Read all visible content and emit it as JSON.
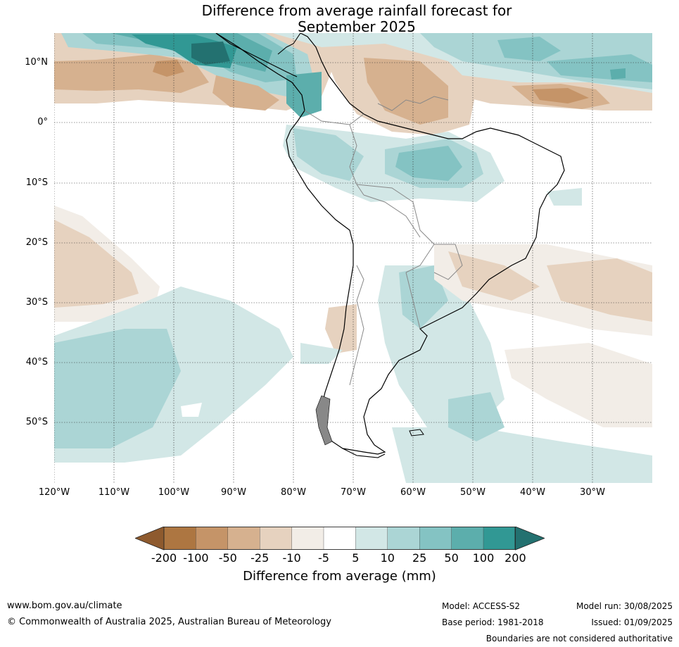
{
  "title": {
    "line1": "Difference from average rainfall forecast for",
    "line2": "September 2025"
  },
  "axes": {
    "lat_labels": [
      "10°N",
      "0°",
      "10°S",
      "20°S",
      "30°S",
      "40°S",
      "50°S"
    ],
    "lon_labels": [
      "120°W",
      "110°W",
      "100°W",
      "90°W",
      "80°W",
      "70°W",
      "60°W",
      "50°W",
      "40°W",
      "30°W"
    ]
  },
  "colorbar": {
    "ticks": [
      "-200",
      "-100",
      "-50",
      "-25",
      "-10",
      "-5",
      "5",
      "10",
      "25",
      "50",
      "100",
      "200"
    ],
    "label": "Difference from average (mm)",
    "colors": [
      "#8e5a2e",
      "#ad7641",
      "#c59468",
      "#d6b18f",
      "#e6d2bf",
      "#f2ede7",
      "#ffffff",
      "#d2e7e6",
      "#abd5d5",
      "#84c3c3",
      "#5caeac",
      "#319894",
      "#237170"
    ]
  },
  "footer": {
    "website": "www.bom.gov.au/climate",
    "copyright": "© Commonwealth of Australia 2025, Australian Bureau of Meteorology",
    "model": "Model: ACCESS-S2",
    "model_run": "Model run: 30/08/2025",
    "base_period": "Base period: 1981-2018",
    "issued": "Issued: 01/09/2025",
    "disclaimer": "Boundaries are not considered authoritative"
  }
}
